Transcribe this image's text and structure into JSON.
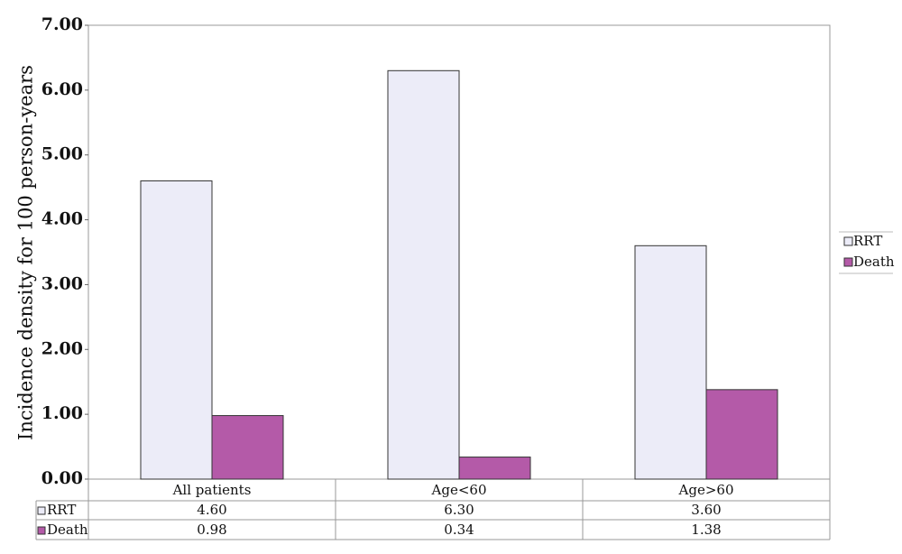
{
  "chart_data": {
    "type": "bar",
    "y_label": "Incidence density for 100 person-years",
    "categories": [
      "All patients",
      "Age<60",
      "Age>60"
    ],
    "series": [
      {
        "name": "RRT",
        "color": "#ececf8",
        "values": [
          4.6,
          6.3,
          3.6
        ],
        "value_labels": [
          "4.60",
          "6.30",
          "3.60"
        ]
      },
      {
        "name": "Death",
        "color": "#b45aa8",
        "values": [
          0.98,
          0.34,
          1.38
        ],
        "value_labels": [
          "0.98",
          "0.34",
          "1.38"
        ]
      }
    ],
    "ylim": [
      0,
      7
    ],
    "yticks": [
      {
        "value": 0,
        "label": "0.00"
      },
      {
        "value": 1,
        "label": "1.00"
      },
      {
        "value": 2,
        "label": "2.00"
      },
      {
        "value": 3,
        "label": "3.00"
      },
      {
        "value": 4,
        "label": "4.00"
      },
      {
        "value": 5,
        "label": "5.00"
      },
      {
        "value": 6,
        "label": "6.00"
      },
      {
        "value": 7,
        "label": "7.00"
      }
    ],
    "legend": "right"
  }
}
